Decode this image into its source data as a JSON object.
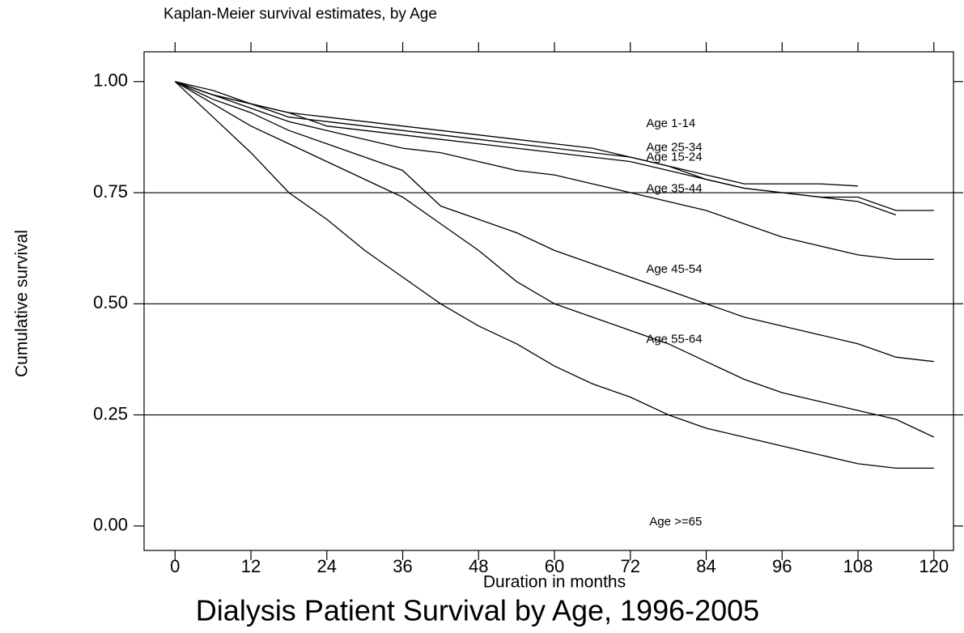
{
  "chart_data": {
    "type": "line",
    "title": "Kaplan-Meier survival estimates, by Age",
    "caption": "Dialysis Patient Survival by Age, 1996-2005",
    "x_label": "Duration in months",
    "y_label": "Cumulative survival",
    "xlim": [
      -4.9,
      123.1
    ],
    "ylim": [
      -0.055,
      1.067
    ],
    "xticks": [
      0,
      12,
      24,
      36,
      48,
      60,
      72,
      84,
      96,
      108,
      120
    ],
    "yticks": [
      {
        "value": 0,
        "label": "0.00"
      },
      0.25,
      {
        "value": 0.5,
        "label": "0.50"
      },
      0.75,
      {
        "value": 1,
        "label": "1.00"
      }
    ],
    "grid": true,
    "x": [
      0,
      6,
      12,
      18,
      24,
      30,
      36,
      42,
      48,
      54,
      60,
      66,
      72,
      78,
      84,
      90,
      96,
      102,
      108,
      114,
      120
    ],
    "series": [
      {
        "name": "Age 1-14",
        "color": "#000000",
        "label_x": 74.5,
        "label_y": 0.905,
        "values": [
          1,
          0.97,
          0.95,
          0.93,
          0.92,
          0.91,
          0.9,
          0.89,
          0.88,
          0.87,
          0.86,
          0.85,
          0.83,
          0.81,
          0.79,
          0.77,
          0.77,
          0.77,
          0.765,
          null,
          null
        ]
      },
      {
        "name": "Age 25-34",
        "color": "#000000",
        "label_x": 74.5,
        "label_y": 0.851,
        "values": [
          1,
          0.97,
          0.95,
          0.93,
          0.9,
          0.89,
          0.88,
          0.87,
          0.86,
          0.85,
          0.84,
          0.83,
          0.82,
          0.8,
          0.78,
          0.76,
          0.75,
          0.74,
          0.74,
          0.71,
          0.71
        ]
      },
      {
        "name": "Age 15-24",
        "color": "#000000",
        "label_x": 74.5,
        "label_y": 0.829,
        "values": [
          1,
          0.98,
          0.95,
          0.92,
          0.91,
          0.9,
          0.89,
          0.88,
          0.87,
          0.86,
          0.85,
          0.84,
          0.83,
          0.81,
          0.78,
          0.76,
          0.75,
          0.74,
          0.73,
          0.7,
          null
        ]
      },
      {
        "name": "Age 35-44",
        "color": "#000000",
        "label_x": 74.5,
        "label_y": 0.758,
        "values": [
          1,
          0.97,
          0.94,
          0.91,
          0.89,
          0.87,
          0.85,
          0.84,
          0.82,
          0.8,
          0.79,
          0.77,
          0.75,
          0.73,
          0.71,
          0.68,
          0.65,
          0.63,
          0.61,
          0.6,
          0.6
        ]
      },
      {
        "name": "Age 45-54",
        "color": "#000000",
        "label_x": 74.5,
        "label_y": 0.577,
        "values": [
          1,
          0.96,
          0.93,
          0.89,
          0.86,
          0.83,
          0.8,
          0.72,
          0.69,
          0.66,
          0.62,
          0.59,
          0.56,
          0.53,
          0.5,
          0.47,
          0.45,
          0.43,
          0.41,
          0.38,
          0.37
        ]
      },
      {
        "name": "Age 55-64",
        "color": "#000000",
        "label_x": 74.5,
        "label_y": 0.419,
        "values": [
          1,
          0.95,
          0.9,
          0.86,
          0.82,
          0.78,
          0.74,
          0.68,
          0.62,
          0.55,
          0.5,
          0.47,
          0.44,
          0.41,
          0.37,
          0.33,
          0.3,
          0.28,
          0.26,
          0.24,
          0.2
        ]
      },
      {
        "name": "Age >=65",
        "color": "#000000",
        "label_x": 75,
        "label_y": 0.009,
        "values": [
          1,
          0.92,
          0.84,
          0.75,
          0.69,
          0.62,
          0.56,
          0.5,
          0.45,
          0.41,
          0.36,
          0.32,
          0.29,
          0.25,
          0.22,
          0.2,
          0.18,
          0.16,
          0.14,
          0.13,
          0.13
        ]
      }
    ]
  }
}
